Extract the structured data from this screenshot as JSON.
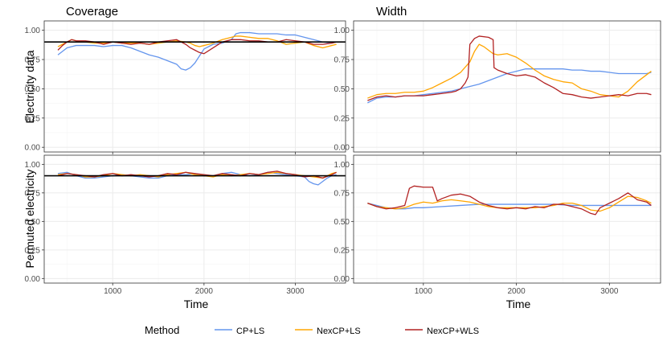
{
  "colors": {
    "cp_ls": "#6495ED",
    "nexcp_ls": "#FFA500",
    "nexcp_wls": "#B22222",
    "target": "#000000",
    "grid_major": "#EBEBEB",
    "grid_minor": "#F5F5F5",
    "panel_border": "#333333",
    "tick_label": "#4D4D4D"
  },
  "legend": {
    "title": "Method",
    "items": [
      {
        "label": "CP+LS",
        "color": "#6495ED"
      },
      {
        "label": "NexCP+LS",
        "color": "#FFA500"
      },
      {
        "label": "NexCP+WLS",
        "color": "#B22222"
      }
    ]
  },
  "chart_data": [
    {
      "type": "line",
      "panel": "coverage-electricity",
      "title": "Coverage",
      "ylabel": "Electricity data",
      "xlabel": "",
      "xlim": [
        250,
        3550
      ],
      "ylim": [
        0,
        1
      ],
      "xticks": [
        1000,
        2000,
        3000
      ],
      "yticks": [
        0.0,
        0.25,
        0.5,
        0.75,
        1.0
      ],
      "ytick_labels": [
        "0.00",
        "0.25",
        "0.50",
        "0.75",
        "1.00"
      ],
      "hline": 0.9,
      "series": [
        {
          "name": "CP+LS",
          "x": [
            400,
            450,
            500,
            550,
            600,
            700,
            800,
            900,
            1000,
            1100,
            1200,
            1300,
            1400,
            1500,
            1600,
            1700,
            1750,
            1800,
            1850,
            1900,
            1950,
            2000,
            2100,
            2200,
            2300,
            2350,
            2400,
            2500,
            2600,
            2700,
            2800,
            2900,
            3000,
            3100,
            3200,
            3300,
            3400,
            3450
          ],
          "y": [
            0.79,
            0.82,
            0.85,
            0.86,
            0.87,
            0.87,
            0.87,
            0.86,
            0.87,
            0.87,
            0.85,
            0.82,
            0.79,
            0.77,
            0.74,
            0.71,
            0.67,
            0.66,
            0.68,
            0.72,
            0.78,
            0.84,
            0.88,
            0.89,
            0.92,
            0.97,
            0.98,
            0.98,
            0.97,
            0.97,
            0.97,
            0.96,
            0.96,
            0.94,
            0.92,
            0.9,
            0.89,
            0.9
          ]
        },
        {
          "name": "NexCP+LS",
          "x": [
            400,
            450,
            500,
            550,
            600,
            700,
            800,
            900,
            1000,
            1100,
            1200,
            1300,
            1400,
            1500,
            1600,
            1700,
            1800,
            1850,
            1900,
            1950,
            2000,
            2100,
            2200,
            2300,
            2350,
            2400,
            2500,
            2600,
            2700,
            2800,
            2900,
            3000,
            3100,
            3200,
            3300,
            3400,
            3450
          ],
          "y": [
            0.86,
            0.88,
            0.9,
            0.92,
            0.91,
            0.9,
            0.89,
            0.89,
            0.9,
            0.89,
            0.89,
            0.89,
            0.88,
            0.89,
            0.9,
            0.91,
            0.9,
            0.89,
            0.87,
            0.86,
            0.87,
            0.89,
            0.92,
            0.94,
            0.95,
            0.95,
            0.94,
            0.93,
            0.93,
            0.91,
            0.88,
            0.89,
            0.9,
            0.87,
            0.85,
            0.87,
            0.88
          ]
        },
        {
          "name": "NexCP+WLS",
          "x": [
            400,
            450,
            500,
            550,
            600,
            700,
            800,
            900,
            1000,
            1100,
            1200,
            1300,
            1400,
            1500,
            1600,
            1700,
            1800,
            1850,
            1900,
            1950,
            2000,
            2100,
            2200,
            2300,
            2350,
            2400,
            2500,
            2600,
            2700,
            2800,
            2900,
            3000,
            3100,
            3200,
            3300,
            3400,
            3450
          ],
          "y": [
            0.83,
            0.87,
            0.9,
            0.92,
            0.91,
            0.91,
            0.9,
            0.88,
            0.9,
            0.89,
            0.88,
            0.89,
            0.88,
            0.9,
            0.91,
            0.92,
            0.88,
            0.85,
            0.83,
            0.81,
            0.8,
            0.85,
            0.9,
            0.92,
            0.92,
            0.92,
            0.91,
            0.91,
            0.9,
            0.9,
            0.92,
            0.91,
            0.9,
            0.88,
            0.88,
            0.89,
            0.9
          ]
        }
      ]
    },
    {
      "type": "line",
      "panel": "width-electricity",
      "title": "Width",
      "ylabel": "",
      "xlabel": "",
      "xlim": [
        250,
        3550
      ],
      "ylim": [
        0,
        1
      ],
      "xticks": [
        1000,
        2000,
        3000
      ],
      "yticks": [
        0.0,
        0.25,
        0.5,
        0.75,
        1.0
      ],
      "ytick_labels": [
        "0.00",
        "0.25",
        "0.50",
        "0.75",
        "1.00"
      ],
      "series": [
        {
          "name": "CP+LS",
          "x": [
            400,
            500,
            600,
            700,
            800,
            900,
            1000,
            1100,
            1200,
            1300,
            1400,
            1500,
            1600,
            1700,
            1800,
            1900,
            2000,
            2100,
            2200,
            2300,
            2400,
            2500,
            2600,
            2700,
            2800,
            2900,
            3000,
            3100,
            3200,
            3300,
            3400,
            3450
          ],
          "y": [
            0.38,
            0.42,
            0.43,
            0.43,
            0.44,
            0.44,
            0.45,
            0.46,
            0.47,
            0.48,
            0.5,
            0.52,
            0.54,
            0.57,
            0.6,
            0.63,
            0.65,
            0.67,
            0.67,
            0.67,
            0.67,
            0.67,
            0.66,
            0.66,
            0.65,
            0.65,
            0.64,
            0.63,
            0.63,
            0.63,
            0.63,
            0.64
          ]
        },
        {
          "name": "NexCP+LS",
          "x": [
            400,
            500,
            600,
            700,
            800,
            900,
            1000,
            1100,
            1200,
            1300,
            1400,
            1500,
            1550,
            1600,
            1650,
            1700,
            1750,
            1800,
            1900,
            2000,
            2100,
            2200,
            2300,
            2400,
            2500,
            2600,
            2700,
            2800,
            2900,
            3000,
            3100,
            3200,
            3300,
            3400,
            3450
          ],
          "y": [
            0.42,
            0.45,
            0.46,
            0.46,
            0.47,
            0.47,
            0.48,
            0.51,
            0.55,
            0.59,
            0.64,
            0.73,
            0.82,
            0.88,
            0.86,
            0.83,
            0.8,
            0.79,
            0.8,
            0.77,
            0.72,
            0.66,
            0.61,
            0.58,
            0.56,
            0.55,
            0.5,
            0.48,
            0.45,
            0.44,
            0.43,
            0.48,
            0.56,
            0.62,
            0.65
          ]
        },
        {
          "name": "NexCP+WLS",
          "x": [
            400,
            500,
            600,
            700,
            800,
            900,
            1000,
            1100,
            1200,
            1300,
            1350,
            1400,
            1450,
            1480,
            1500,
            1550,
            1600,
            1700,
            1750,
            1760,
            1800,
            1900,
            2000,
            2100,
            2200,
            2300,
            2400,
            2500,
            2600,
            2700,
            2800,
            2900,
            3000,
            3100,
            3200,
            3300,
            3400,
            3450
          ],
          "y": [
            0.4,
            0.43,
            0.44,
            0.43,
            0.44,
            0.44,
            0.44,
            0.45,
            0.46,
            0.47,
            0.48,
            0.5,
            0.55,
            0.6,
            0.88,
            0.93,
            0.95,
            0.94,
            0.92,
            0.68,
            0.66,
            0.63,
            0.61,
            0.62,
            0.6,
            0.55,
            0.51,
            0.46,
            0.45,
            0.43,
            0.42,
            0.43,
            0.44,
            0.45,
            0.44,
            0.46,
            0.46,
            0.45
          ]
        }
      ]
    },
    {
      "type": "line",
      "panel": "coverage-permuted",
      "title": "",
      "ylabel": "Permuted electricity",
      "xlabel": "Time",
      "xlim": [
        250,
        3550
      ],
      "ylim": [
        0,
        1
      ],
      "xticks": [
        1000,
        2000,
        3000
      ],
      "xtick_labels": [
        "1000",
        "2000",
        "3000"
      ],
      "yticks": [
        0.0,
        0.25,
        0.5,
        0.75,
        1.0
      ],
      "ytick_labels": [
        "0.00",
        "0.25",
        "0.50",
        "0.75",
        "1.00"
      ],
      "hline": 0.9,
      "series": [
        {
          "name": "CP+LS",
          "x": [
            400,
            500,
            600,
            700,
            800,
            900,
            1000,
            1100,
            1200,
            1300,
            1400,
            1500,
            1600,
            1700,
            1800,
            1900,
            2000,
            2100,
            2200,
            2300,
            2400,
            2500,
            2600,
            2700,
            2800,
            2900,
            3000,
            3100,
            3150,
            3200,
            3250,
            3300,
            3350,
            3400,
            3450
          ],
          "y": [
            0.92,
            0.93,
            0.9,
            0.88,
            0.88,
            0.89,
            0.9,
            0.91,
            0.9,
            0.89,
            0.88,
            0.88,
            0.9,
            0.91,
            0.91,
            0.92,
            0.9,
            0.9,
            0.92,
            0.93,
            0.91,
            0.9,
            0.91,
            0.93,
            0.92,
            0.91,
            0.9,
            0.89,
            0.85,
            0.83,
            0.82,
            0.85,
            0.88,
            0.9,
            0.91
          ]
        },
        {
          "name": "NexCP+LS",
          "x": [
            400,
            500,
            600,
            700,
            800,
            900,
            1000,
            1100,
            1200,
            1300,
            1400,
            1500,
            1600,
            1700,
            1800,
            1900,
            2000,
            2100,
            2200,
            2300,
            2400,
            2500,
            2600,
            2700,
            2800,
            2900,
            3000,
            3100,
            3200,
            3300,
            3400,
            3450
          ],
          "y": [
            0.91,
            0.92,
            0.91,
            0.89,
            0.89,
            0.9,
            0.92,
            0.91,
            0.9,
            0.91,
            0.9,
            0.89,
            0.91,
            0.92,
            0.93,
            0.91,
            0.9,
            0.89,
            0.91,
            0.9,
            0.91,
            0.92,
            0.91,
            0.92,
            0.93,
            0.92,
            0.91,
            0.9,
            0.89,
            0.88,
            0.92,
            0.93
          ]
        },
        {
          "name": "NexCP+WLS",
          "x": [
            400,
            500,
            600,
            700,
            800,
            900,
            1000,
            1100,
            1200,
            1300,
            1400,
            1500,
            1600,
            1700,
            1800,
            1900,
            2000,
            2100,
            2200,
            2300,
            2400,
            2500,
            2600,
            2700,
            2800,
            2900,
            3000,
            3100,
            3200,
            3300,
            3400,
            3450
          ],
          "y": [
            0.9,
            0.92,
            0.91,
            0.9,
            0.89,
            0.91,
            0.92,
            0.9,
            0.91,
            0.9,
            0.89,
            0.9,
            0.92,
            0.91,
            0.93,
            0.92,
            0.91,
            0.9,
            0.92,
            0.91,
            0.9,
            0.92,
            0.91,
            0.93,
            0.94,
            0.92,
            0.91,
            0.89,
            0.9,
            0.88,
            0.91,
            0.93
          ]
        }
      ]
    },
    {
      "type": "line",
      "panel": "width-permuted",
      "title": "",
      "ylabel": "",
      "xlabel": "Time",
      "xlim": [
        250,
        3550
      ],
      "ylim": [
        0,
        1
      ],
      "xticks": [
        1000,
        2000,
        3000
      ],
      "xtick_labels": [
        "1000",
        "2000",
        "3000"
      ],
      "yticks": [
        0.0,
        0.25,
        0.5,
        0.75,
        1.0
      ],
      "ytick_labels": [
        "0.00",
        "0.25",
        "0.50",
        "0.75",
        "1.00"
      ],
      "series": [
        {
          "name": "CP+LS",
          "x": [
            400,
            500,
            600,
            700,
            800,
            900,
            1000,
            1200,
            1400,
            1600,
            1800,
            2000,
            2200,
            2400,
            2600,
            2800,
            3000,
            3200,
            3400,
            3450
          ],
          "y": [
            0.66,
            0.64,
            0.62,
            0.61,
            0.61,
            0.62,
            0.62,
            0.63,
            0.64,
            0.65,
            0.65,
            0.65,
            0.65,
            0.65,
            0.64,
            0.64,
            0.64,
            0.64,
            0.64,
            0.64
          ]
        },
        {
          "name": "NexCP+LS",
          "x": [
            400,
            500,
            600,
            700,
            800,
            900,
            1000,
            1100,
            1150,
            1200,
            1300,
            1400,
            1500,
            1600,
            1700,
            1800,
            1900,
            2000,
            2100,
            2200,
            2300,
            2400,
            2500,
            2600,
            2700,
            2800,
            2900,
            3000,
            3100,
            3200,
            3300,
            3400,
            3450
          ],
          "y": [
            0.66,
            0.63,
            0.62,
            0.61,
            0.62,
            0.65,
            0.67,
            0.66,
            0.67,
            0.68,
            0.69,
            0.68,
            0.67,
            0.65,
            0.63,
            0.62,
            0.62,
            0.62,
            0.62,
            0.62,
            0.63,
            0.64,
            0.66,
            0.66,
            0.64,
            0.6,
            0.59,
            0.62,
            0.67,
            0.72,
            0.71,
            0.68,
            0.66
          ]
        },
        {
          "name": "NexCP+WLS",
          "x": [
            400,
            500,
            600,
            700,
            800,
            850,
            900,
            1000,
            1100,
            1150,
            1200,
            1300,
            1400,
            1500,
            1600,
            1700,
            1800,
            1900,
            2000,
            2100,
            2200,
            2300,
            2400,
            2500,
            2600,
            2700,
            2750,
            2800,
            2850,
            2900,
            3000,
            3100,
            3200,
            3300,
            3400,
            3450
          ],
          "y": [
            0.66,
            0.63,
            0.61,
            0.62,
            0.64,
            0.79,
            0.81,
            0.8,
            0.8,
            0.68,
            0.7,
            0.73,
            0.74,
            0.72,
            0.67,
            0.64,
            0.62,
            0.61,
            0.62,
            0.61,
            0.63,
            0.62,
            0.65,
            0.65,
            0.63,
            0.61,
            0.59,
            0.57,
            0.56,
            0.62,
            0.66,
            0.7,
            0.75,
            0.69,
            0.67,
            0.64
          ]
        }
      ]
    }
  ]
}
